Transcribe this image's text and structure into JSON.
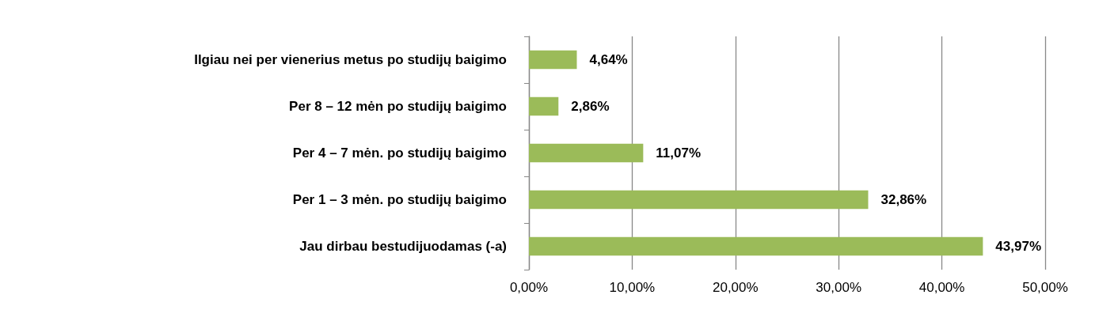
{
  "chart_data": {
    "type": "bar",
    "orientation": "horizontal",
    "categories": [
      "Ilgiau nei per vienerius metus po studijų baigimo",
      "Per 8 – 12 mėn po studijų baigimo",
      "Per 4 – 7 mėn. po studijų baigimo",
      "Per 1 – 3 mėn. po studijų baigimo",
      "Jau dirbau bestudijuodamas (-a)"
    ],
    "values": [
      4.64,
      2.86,
      11.07,
      32.86,
      43.97
    ],
    "value_labels": [
      "4,64%",
      "2,86%",
      "11,07%",
      "32,86%",
      "43,97%"
    ],
    "color": "#9bbb59",
    "xlim": [
      0,
      50
    ],
    "xticks": [
      {
        "value": 0,
        "label": "0,00%"
      },
      {
        "value": 10,
        "label": "10,00%"
      },
      {
        "value": 20,
        "label": "20,00%"
      },
      {
        "value": 30,
        "label": "30,00%"
      },
      {
        "value": 40,
        "label": "40,00%"
      },
      {
        "value": 50,
        "label": "50,00%"
      }
    ],
    "grid": "x"
  }
}
